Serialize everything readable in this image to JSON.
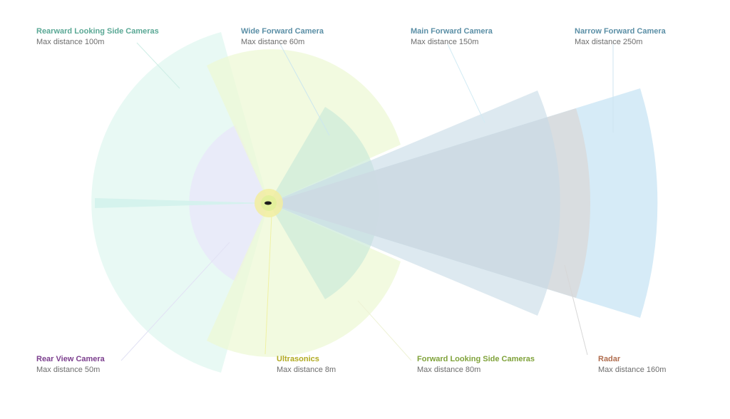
{
  "labels": {
    "rearward_side": {
      "title": "Rearward Looking Side Cameras",
      "distance": "Max distance 100m"
    },
    "wide_forward": {
      "title": "Wide Forward Camera",
      "distance": "Max distance 60m"
    },
    "main_forward": {
      "title": "Main Forward Camera",
      "distance": "Max distance 150m"
    },
    "narrow_forward": {
      "title": "Narrow Forward Camera",
      "distance": "Max distance 250m"
    },
    "rear_view": {
      "title": "Rear View Camera",
      "distance": "Max distance 50m"
    },
    "ultrasonics": {
      "title": "Ultrasonics",
      "distance": "Max distance 8m"
    },
    "forward_side": {
      "title": "Forward Looking Side Cameras",
      "distance": "Max distance 80m"
    },
    "radar": {
      "title": "Radar",
      "distance": "Max distance 160m"
    }
  },
  "colors": {
    "rearward_side": "#5aa895",
    "wide_forward": "#5b8fa6",
    "main_forward": "#5b8fa6",
    "narrow_forward": "#5b8fa6",
    "rear_view": "#7c3f8e",
    "ultrasonics": "#b0a91e",
    "forward_side": "#7fa23a",
    "radar": "#b06d4e"
  }
}
